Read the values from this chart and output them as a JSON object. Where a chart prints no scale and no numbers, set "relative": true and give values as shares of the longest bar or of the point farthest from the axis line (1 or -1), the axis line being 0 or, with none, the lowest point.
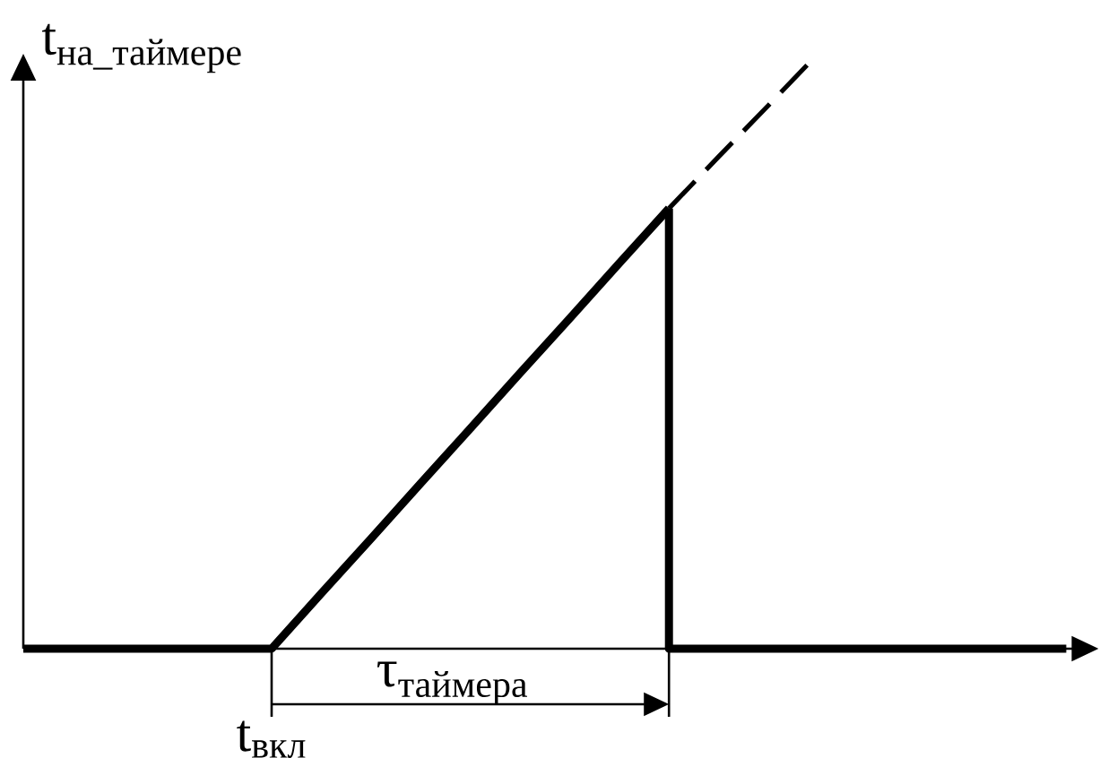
{
  "chart_data": {
    "type": "line",
    "ylabel": "\\text{t}_{\\text{на\\_таймере}}",
    "relative": true,
    "categories": [
      null,
      null,
      null,
      null,
      null,
      null,
      null,
      null,
      null,
      null,
      null,
      null,
      null,
      null,
      null,
      null,
      null,
      null,
      null,
      null,
      null,
      null
    ],
    "series": [
      {
        "color": "#000000",
        "values": [
          0,
          0,
          0,
          0,
          0,
          0,
          0.093,
          0.185,
          0.278,
          0.37,
          0.463,
          0.555,
          0.648,
          0.74,
          null,
          null,
          null,
          null,
          null,
          null,
          null,
          null
        ]
      },
      {
        "color": "#000000",
        "type": "step",
        "values": [
          null,
          null,
          null,
          null,
          null,
          null,
          null,
          null,
          null,
          null,
          null,
          null,
          null,
          0.74,
          0,
          0,
          0,
          0,
          0,
          0,
          0,
          0
        ]
      },
      {
        "color": "#000000",
        "line_style": "dashed",
        "values": [
          null,
          null,
          null,
          null,
          null,
          null,
          null,
          null,
          null,
          null,
          null,
          null,
          null,
          0.74,
          0.827,
          0.913,
          1,
          null,
          null,
          null,
          null,
          null
        ]
      }
    ],
    "annotations": [
      {
        "text": "t$_{вкл}$",
        "y": 0
      },
      "τ$_{таймера}$"
    ]
  }
}
